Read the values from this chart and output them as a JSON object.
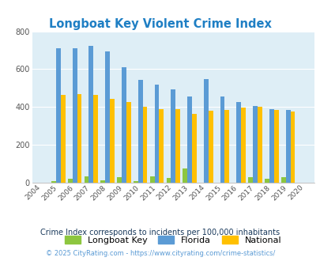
{
  "title": "Longboat Key Violent Crime Index",
  "years": [
    2004,
    2005,
    2006,
    2007,
    2008,
    2009,
    2010,
    2011,
    2012,
    2013,
    2014,
    2015,
    2016,
    2017,
    2018,
    2019,
    2020
  ],
  "longboat_key": [
    0,
    10,
    22,
    32,
    12,
    28,
    10,
    32,
    25,
    75,
    0,
    0,
    0,
    28,
    22,
    28,
    0
  ],
  "florida": [
    0,
    710,
    710,
    725,
    695,
    612,
    545,
    518,
    495,
    455,
    547,
    455,
    425,
    405,
    388,
    383,
    0
  ],
  "national": [
    0,
    465,
    470,
    465,
    445,
    425,
    400,
    387,
    387,
    365,
    380,
    384,
    399,
    400,
    385,
    378,
    0
  ],
  "bar_width": 0.28,
  "color_lbk": "#8dc63f",
  "color_florida": "#5b9bd5",
  "color_national": "#ffc000",
  "bg_color": "#deeef6",
  "ylim": [
    0,
    800
  ],
  "yticks": [
    0,
    200,
    400,
    600,
    800
  ],
  "subtitle": "Crime Index corresponds to incidents per 100,000 inhabitants",
  "footer": "© 2025 CityRating.com - https://www.cityrating.com/crime-statistics/",
  "title_color": "#1f7fc4",
  "subtitle_color": "#1a3a5c",
  "footer_color": "#5b9bd5"
}
